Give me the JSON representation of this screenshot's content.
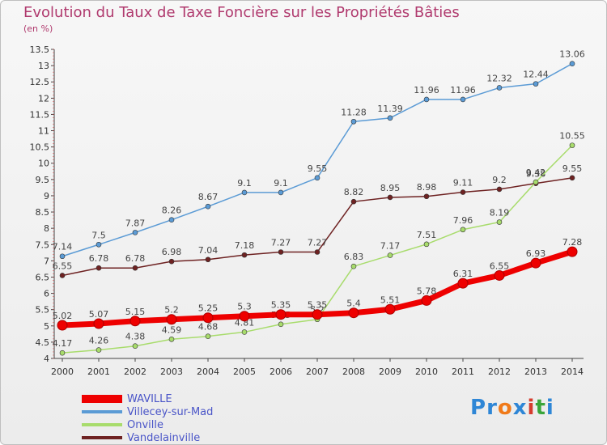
{
  "header": {
    "title": "Evolution du Taux de Taxe Foncière sur les Propriétés Bâties",
    "subtitle": "(en %)"
  },
  "brand": {
    "text": "Proxiti",
    "letters": [
      "P",
      "r",
      "o",
      "x",
      "i",
      "t",
      "i"
    ],
    "colors": [
      "#2e86d6",
      "#2e86d6",
      "#f07a1a",
      "#2e86d6",
      "#d63c2e",
      "#3aa53a",
      "#2e86d6"
    ]
  },
  "chart_data": {
    "type": "line",
    "title": "Evolution du Taux de Taxe Foncière sur les Propriétés Bâties",
    "ylabel": "(en %)",
    "xlabel": "",
    "ylim": [
      4,
      13.5
    ],
    "yticks": [
      "4",
      "4.5",
      "5",
      "5.5",
      "6",
      "6.5",
      "7",
      "7.5",
      "8",
      "8.5",
      "9",
      "9.5",
      "10",
      "10.5",
      "11",
      "11.5",
      "12",
      "12.5",
      "13",
      "13.5"
    ],
    "categories": [
      "2000",
      "2001",
      "2002",
      "2003",
      "2004",
      "2005",
      "2006",
      "2007",
      "2008",
      "2009",
      "2010",
      "2011",
      "2012",
      "2013",
      "2014"
    ],
    "grid": false,
    "legend_position": "bottom-left",
    "series": [
      {
        "name": "WAVILLE",
        "color": "#ee0000",
        "values": [
          5.02,
          5.07,
          5.15,
          5.2,
          5.25,
          5.3,
          5.35,
          5.35,
          5.4,
          5.51,
          5.78,
          6.31,
          6.55,
          6.93,
          7.28
        ],
        "labels": [
          "5.02",
          "5.07",
          "5.15",
          "5.2",
          "5.25",
          "5.3",
          "5.35",
          "5.35",
          "5.4",
          "5.51",
          "5.78",
          "6.31",
          "6.55",
          "6.93",
          "7.28"
        ]
      },
      {
        "name": "Villecey-sur-Mad",
        "color": "#5b9bd5",
        "values": [
          7.14,
          7.5,
          7.87,
          8.26,
          8.67,
          9.1,
          9.1,
          9.55,
          11.28,
          11.39,
          11.96,
          11.96,
          12.32,
          12.44,
          13.06
        ],
        "labels": [
          "7.14",
          "7.5",
          "7.87",
          "8.26",
          "8.67",
          "9.1",
          "9.1",
          "9.55",
          "11.28",
          "11.39",
          "11.96",
          "11.96",
          "12.32",
          "12.44",
          "13.06"
        ]
      },
      {
        "name": "Onville",
        "color": "#a8dc6c",
        "values": [
          4.17,
          4.26,
          4.38,
          4.59,
          4.68,
          4.81,
          5.05,
          5.2,
          6.83,
          7.17,
          7.51,
          7.96,
          8.19,
          9.42,
          10.55
        ],
        "labels": [
          "4.17",
          "4.26",
          "4.38",
          "4.59",
          "4.68",
          "4.81",
          "5.05",
          "5.2",
          "6.83",
          "7.17",
          "7.51",
          "7.96",
          "8.19",
          "9.42",
          "10.55"
        ]
      },
      {
        "name": "Vandelainville",
        "color": "#6e2222",
        "values": [
          6.55,
          6.78,
          6.78,
          6.98,
          7.04,
          7.18,
          7.27,
          7.27,
          8.82,
          8.95,
          8.98,
          9.11,
          9.2,
          9.38,
          9.55
        ],
        "labels": [
          "6.55",
          "6.78",
          "6.78",
          "6.98",
          "7.04",
          "7.18",
          "7.27",
          "7.27",
          "8.82",
          "8.95",
          "8.98",
          "9.11",
          "9.2",
          "9.38",
          "9.55"
        ]
      }
    ]
  }
}
